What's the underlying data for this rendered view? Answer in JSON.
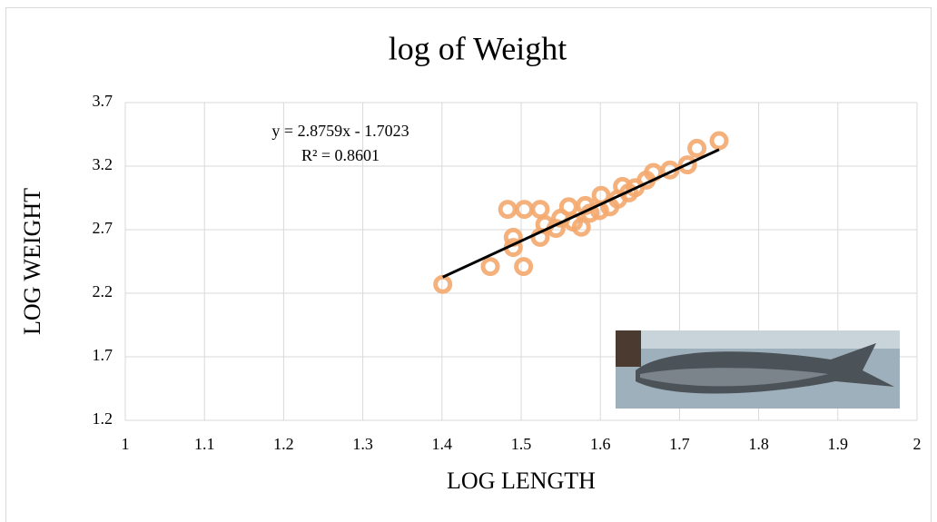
{
  "chart_data": {
    "type": "scatter",
    "title": "log of Weight",
    "x_label": "LOG LENGTH",
    "y_label": "LOG WEIGHT",
    "xlim": [
      1,
      2
    ],
    "ylim": [
      1.2,
      3.7
    ],
    "xticks": [
      1,
      1.1,
      1.2,
      1.3,
      1.4,
      1.5,
      1.6,
      1.7,
      1.8,
      1.9,
      2
    ],
    "yticks": [
      1.2,
      1.7,
      2.2,
      2.7,
      3.2,
      3.7
    ],
    "grid": true,
    "series": [
      {
        "color": "#f4a86e",
        "x": [
          1.401,
          1.461,
          1.503,
          1.483,
          1.504,
          1.49,
          1.49,
          1.524,
          1.524,
          1.53,
          1.544,
          1.55,
          1.56,
          1.566,
          1.576,
          1.581,
          1.587,
          1.599,
          1.601,
          1.612,
          1.622,
          1.628,
          1.636,
          1.644,
          1.658,
          1.667,
          1.688,
          1.71,
          1.722,
          1.75
        ],
        "values": [
          2.27,
          2.41,
          2.41,
          2.86,
          2.86,
          2.64,
          2.56,
          2.86,
          2.64,
          2.74,
          2.71,
          2.79,
          2.88,
          2.76,
          2.72,
          2.89,
          2.83,
          2.85,
          2.97,
          2.88,
          2.94,
          3.04,
          2.99,
          3.03,
          3.09,
          3.15,
          3.17,
          3.21,
          3.34,
          3.4
        ]
      }
    ],
    "trendline": {
      "slope": 2.8759,
      "intercept": -1.7023,
      "color": "#000000",
      "equation_label": "y = 2.8759x - 1.7023",
      "r2_label": "R² = 0.8601"
    }
  }
}
